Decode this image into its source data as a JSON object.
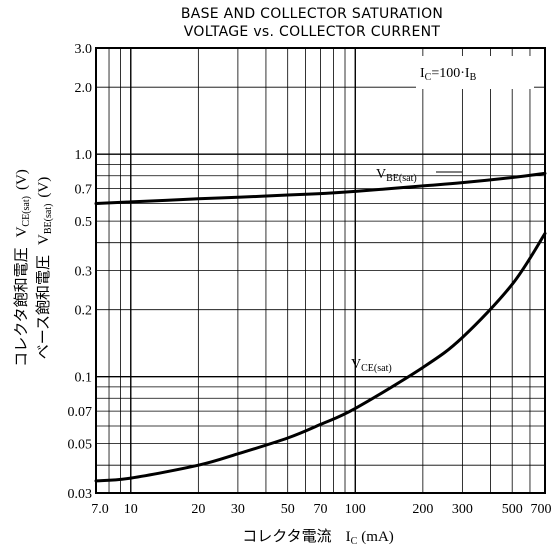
{
  "chart_data": {
    "type": "line",
    "title_line1": "BASE AND COLLECTOR SATURATION",
    "title_line2": "VOLTAGE vs. COLLECTOR CURRENT",
    "xlabel": "コレクタ電流 I C (mA)",
    "ylabel_line1": "コレクタ飽和電圧 V CE(sat) (V)",
    "ylabel_line2": "ベース飽和電圧 V BE(sat) (V)",
    "xscale": "log",
    "yscale": "log",
    "xlim": [
      7,
      700
    ],
    "ylim": [
      0.03,
      3.0
    ],
    "grid": true,
    "x_ticks": [
      7,
      10,
      20,
      30,
      50,
      70,
      100,
      200,
      300,
      500,
      700
    ],
    "x_tick_labels": [
      "7.0",
      "10",
      "20",
      "30",
      "50",
      "70",
      "100",
      "200",
      "300",
      "500",
      "700"
    ],
    "y_ticks": [
      0.03,
      0.05,
      0.07,
      0.1,
      0.2,
      0.3,
      0.5,
      0.7,
      1.0,
      2.0,
      3.0
    ],
    "y_tick_labels": [
      "0.03",
      "0.05",
      "0.07",
      "0.1",
      "0.2",
      "0.3",
      "0.5",
      "0.7",
      "1.0",
      "2.0",
      "3.0"
    ],
    "condition": "I C = 100 · I B",
    "series": [
      {
        "name": "V BE(sat)",
        "x": [
          7,
          10,
          20,
          30,
          50,
          70,
          100,
          200,
          300,
          500,
          700
        ],
        "y": [
          0.6,
          0.61,
          0.63,
          0.64,
          0.655,
          0.665,
          0.68,
          0.72,
          0.745,
          0.785,
          0.82
        ]
      },
      {
        "name": "V CE(sat)",
        "x": [
          7,
          10,
          20,
          30,
          50,
          70,
          100,
          200,
          300,
          500,
          700
        ],
        "y": [
          0.034,
          0.035,
          0.04,
          0.045,
          0.053,
          0.061,
          0.072,
          0.11,
          0.15,
          0.26,
          0.44
        ]
      }
    ]
  },
  "labels": {
    "vbe_main": "V",
    "vbe_sub": "BE(sat)",
    "vce_main": "V",
    "vce_sub": "CE(sat)",
    "cond_ic": "I",
    "cond_ic_sub": "C",
    "cond_eq": "=100·I",
    "cond_ib_sub": "B",
    "xlabel_jp": "コレクタ電流",
    "xlabel_sym": "I",
    "xlabel_sub": "C",
    "xlabel_unit": "(mA)",
    "ylabel1_jp": "コレクタ飽和電圧",
    "ylabel1_sym": "V",
    "ylabel1_sub": "CE(sat)",
    "ylabel1_unit": "(V)",
    "ylabel2_jp": "ベース飽和電圧",
    "ylabel2_sym": "V",
    "ylabel2_sub": "BE(sat)",
    "ylabel2_unit": "(V)"
  }
}
